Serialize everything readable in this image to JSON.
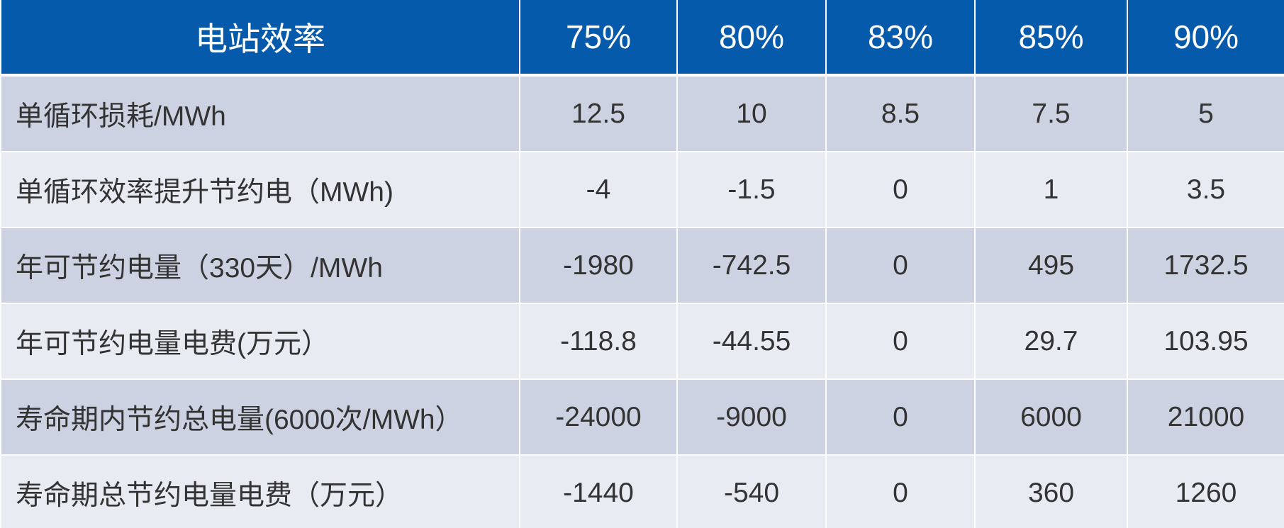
{
  "table": {
    "header": [
      "电站效率",
      "75%",
      "80%",
      "83%",
      "85%",
      "90%"
    ],
    "rows": [
      [
        "单循环损耗/MWh",
        "12.5",
        "10",
        "8.5",
        "7.5",
        "5"
      ],
      [
        "单循环效率提升节约电（MWh)",
        "-4",
        "-1.5",
        "0",
        "1",
        "3.5"
      ],
      [
        "年可节约电量（330天）/MWh",
        "-1980",
        "-742.5",
        "0",
        "495",
        "1732.5"
      ],
      [
        "年可节约电量电费(万元）",
        "-118.8",
        "-44.55",
        "0",
        "29.7",
        "103.95"
      ],
      [
        "寿命期内节约总电量(6000次/MWh）",
        "-24000",
        "-9000",
        "0",
        "6000",
        "21000"
      ],
      [
        "寿命期总节约电量电费（万元）",
        "-1440",
        "-540",
        "0",
        "360",
        "1260"
      ]
    ]
  }
}
